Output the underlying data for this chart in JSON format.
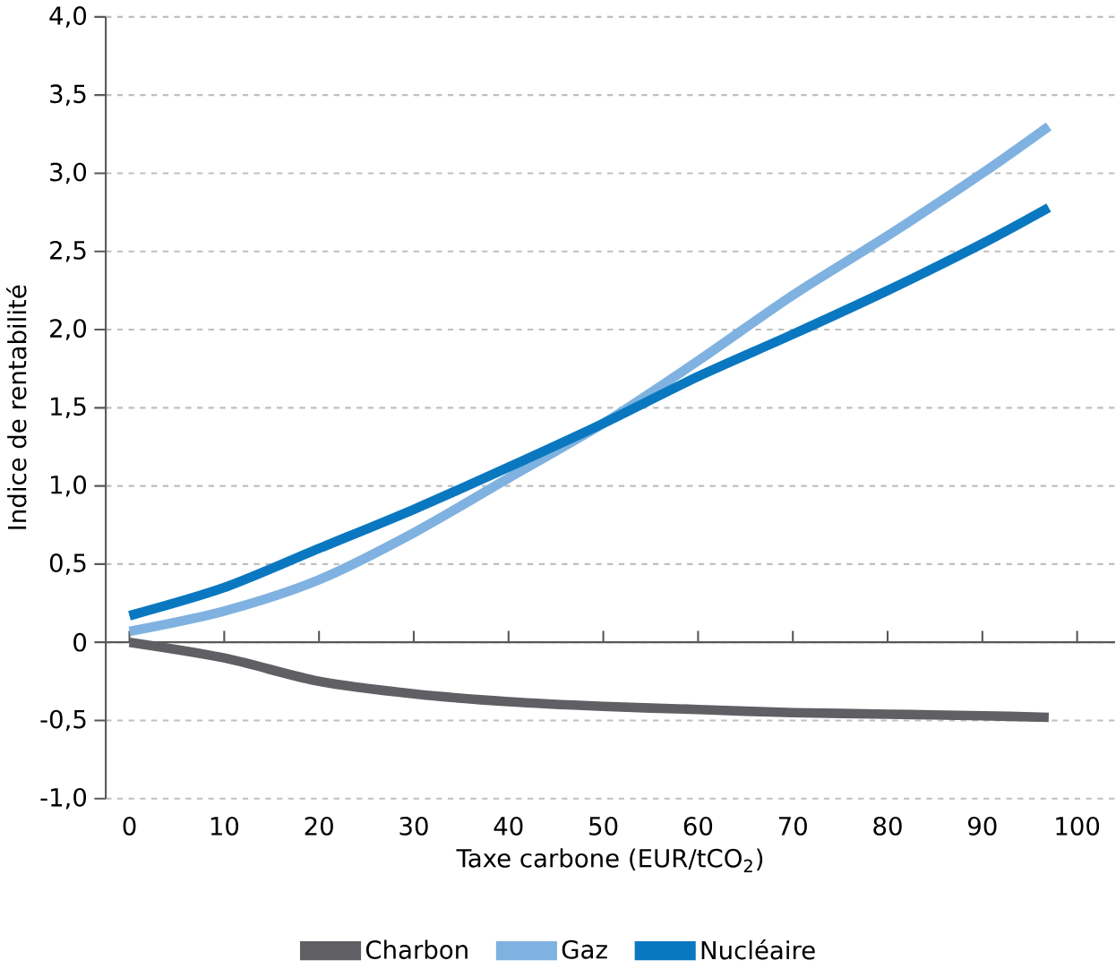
{
  "chart_data": {
    "type": "line",
    "xlabel": "Taxe carbone (EUR/tCO$_{2}$)",
    "ylabel": "Indice de rentabilité",
    "x": [
      0,
      10,
      20,
      30,
      40,
      50,
      60,
      70,
      80,
      90,
      97
    ],
    "series": [
      {
        "name": "Charbon",
        "color": "#5f5f64",
        "values": [
          0,
          -0.1,
          -0.25,
          -0.33,
          -0.38,
          -0.41,
          -0.43,
          -0.45,
          -0.46,
          -0.47,
          -0.48
        ]
      },
      {
        "name": "Gaz",
        "color": "#7fb2e0",
        "values": [
          0.07,
          0.2,
          0.4,
          0.7,
          1.05,
          1.4,
          1.8,
          2.22,
          2.6,
          3.0,
          3.3
        ]
      },
      {
        "name": "Nucléaire",
        "color": "#0a78c0",
        "values": [
          0.17,
          0.35,
          0.6,
          0.85,
          1.12,
          1.4,
          1.7,
          1.97,
          2.25,
          2.55,
          2.78
        ]
      }
    ],
    "xlim": [
      -2.5,
      104
    ],
    "ylim": [
      -1,
      4
    ],
    "xticks": [
      0,
      10,
      20,
      30,
      40,
      50,
      60,
      70,
      80,
      90,
      100
    ],
    "yticks": [
      {
        "value": -1,
        "label": "-1,0"
      },
      {
        "value": -0.5,
        "label": "-0,5"
      },
      0,
      {
        "value": 0.5,
        "label": "0,5"
      },
      {
        "value": 1,
        "label": "1,0"
      },
      {
        "value": 1.5,
        "label": "1,5"
      },
      {
        "value": 2,
        "label": "2,0"
      },
      {
        "value": 2.5,
        "label": "2,5"
      },
      {
        "value": 3,
        "label": "3,0"
      },
      {
        "value": 3.5,
        "label": "3,5"
      },
      {
        "value": 4,
        "label": "4,0"
      }
    ],
    "grid": "y",
    "legend": "bottom",
    "marker": "none",
    "line_style": "solid"
  }
}
